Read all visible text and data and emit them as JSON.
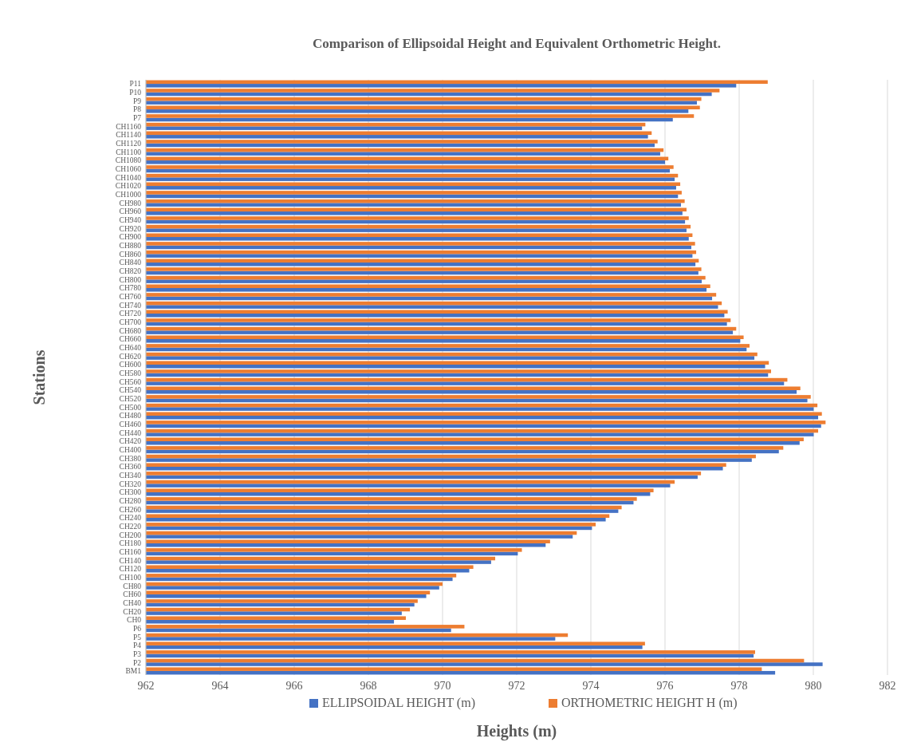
{
  "chart_data": {
    "type": "bar",
    "orientation": "horizontal",
    "title": "Comparison of Ellipsoidal Height and Equivalent Orthometric Height.",
    "xlabel": "Heights (m)",
    "ylabel": "Stations",
    "categories": [
      "P11",
      "P10",
      "P9",
      "P8",
      "P7",
      "CH1160",
      "CH1140",
      "CH1120",
      "CH1100",
      "CH1080",
      "CH1060",
      "CH1040",
      "CH1020",
      "CH1000",
      "CH980",
      "CH960",
      "CH940",
      "CH920",
      "CH900",
      "CH880",
      "CH860",
      "CH840",
      "CH820",
      "CH800",
      "CH780",
      "CH760",
      "CH740",
      "CH720",
      "CH700",
      "CH680",
      "CH660",
      "CH640",
      "CH620",
      "CH600",
      "CH580",
      "CH560",
      "CH540",
      "CH520",
      "CH500",
      "CH480",
      "CH460",
      "CH440",
      "CH420",
      "CH400",
      "CH380",
      "CH360",
      "CH340",
      "CH320",
      "CH300",
      "CH280",
      "CH260",
      "CH240",
      "CH220",
      "CH200",
      "CH180",
      "CH160",
      "CH140",
      "CH120",
      "CH100",
      "CH80",
      "CH60",
      "CH40",
      "CH20",
      "CH0",
      "P6",
      "P5",
      "P4",
      "P3",
      "P2",
      "BM1"
    ],
    "series": [
      {
        "name": "ELLIPSOIDAL HEIGHT (m)",
        "color": "#4472c4",
        "values": [
          977.92,
          977.26,
          976.86,
          976.63,
          976.21,
          975.38,
          975.54,
          975.72,
          975.87,
          976.0,
          976.13,
          976.26,
          976.3,
          976.35,
          976.43,
          976.47,
          976.54,
          976.58,
          976.64,
          976.71,
          976.74,
          976.82,
          976.9,
          976.99,
          977.12,
          977.27,
          977.43,
          977.6,
          977.67,
          977.83,
          978.03,
          978.2,
          978.41,
          978.7,
          978.78,
          979.21,
          979.55,
          979.84,
          980.01,
          980.13,
          980.21,
          980.01,
          979.63,
          979.07,
          978.34,
          977.56,
          976.88,
          976.14,
          975.6,
          975.15,
          974.74,
          974.4,
          974.03,
          973.51,
          972.78,
          972.03,
          971.31,
          970.72,
          970.27,
          969.91,
          969.56,
          969.24,
          968.9,
          968.69,
          970.23,
          973.04,
          975.39,
          978.39,
          980.25,
          978.97
        ]
      },
      {
        "name": "ORTHOMETRIC HEIGHT H (m)",
        "color": "#ed7d31",
        "values": [
          978.77,
          977.47,
          976.98,
          976.94,
          976.78,
          975.47,
          975.64,
          975.8,
          975.96,
          976.09,
          976.23,
          976.35,
          976.41,
          976.45,
          976.53,
          976.58,
          976.64,
          976.69,
          976.74,
          976.81,
          976.84,
          976.91,
          976.98,
          977.09,
          977.22,
          977.38,
          977.53,
          977.69,
          977.77,
          977.92,
          978.12,
          978.28,
          978.49,
          978.8,
          978.86,
          979.3,
          979.65,
          979.93,
          980.11,
          980.23,
          980.33,
          980.13,
          979.74,
          979.19,
          978.45,
          977.65,
          976.97,
          976.26,
          975.69,
          975.24,
          974.83,
          974.5,
          974.13,
          973.62,
          972.9,
          972.14,
          971.42,
          970.83,
          970.37,
          970.0,
          969.66,
          969.33,
          969.12,
          969.01,
          970.59,
          973.38,
          975.46,
          978.43,
          979.75,
          978.61
        ]
      }
    ],
    "xlim": [
      962,
      982
    ],
    "xticks": [
      962,
      964,
      966,
      968,
      970,
      972,
      974,
      976,
      978,
      980,
      982
    ],
    "grid": "x",
    "legend": "bottom"
  }
}
